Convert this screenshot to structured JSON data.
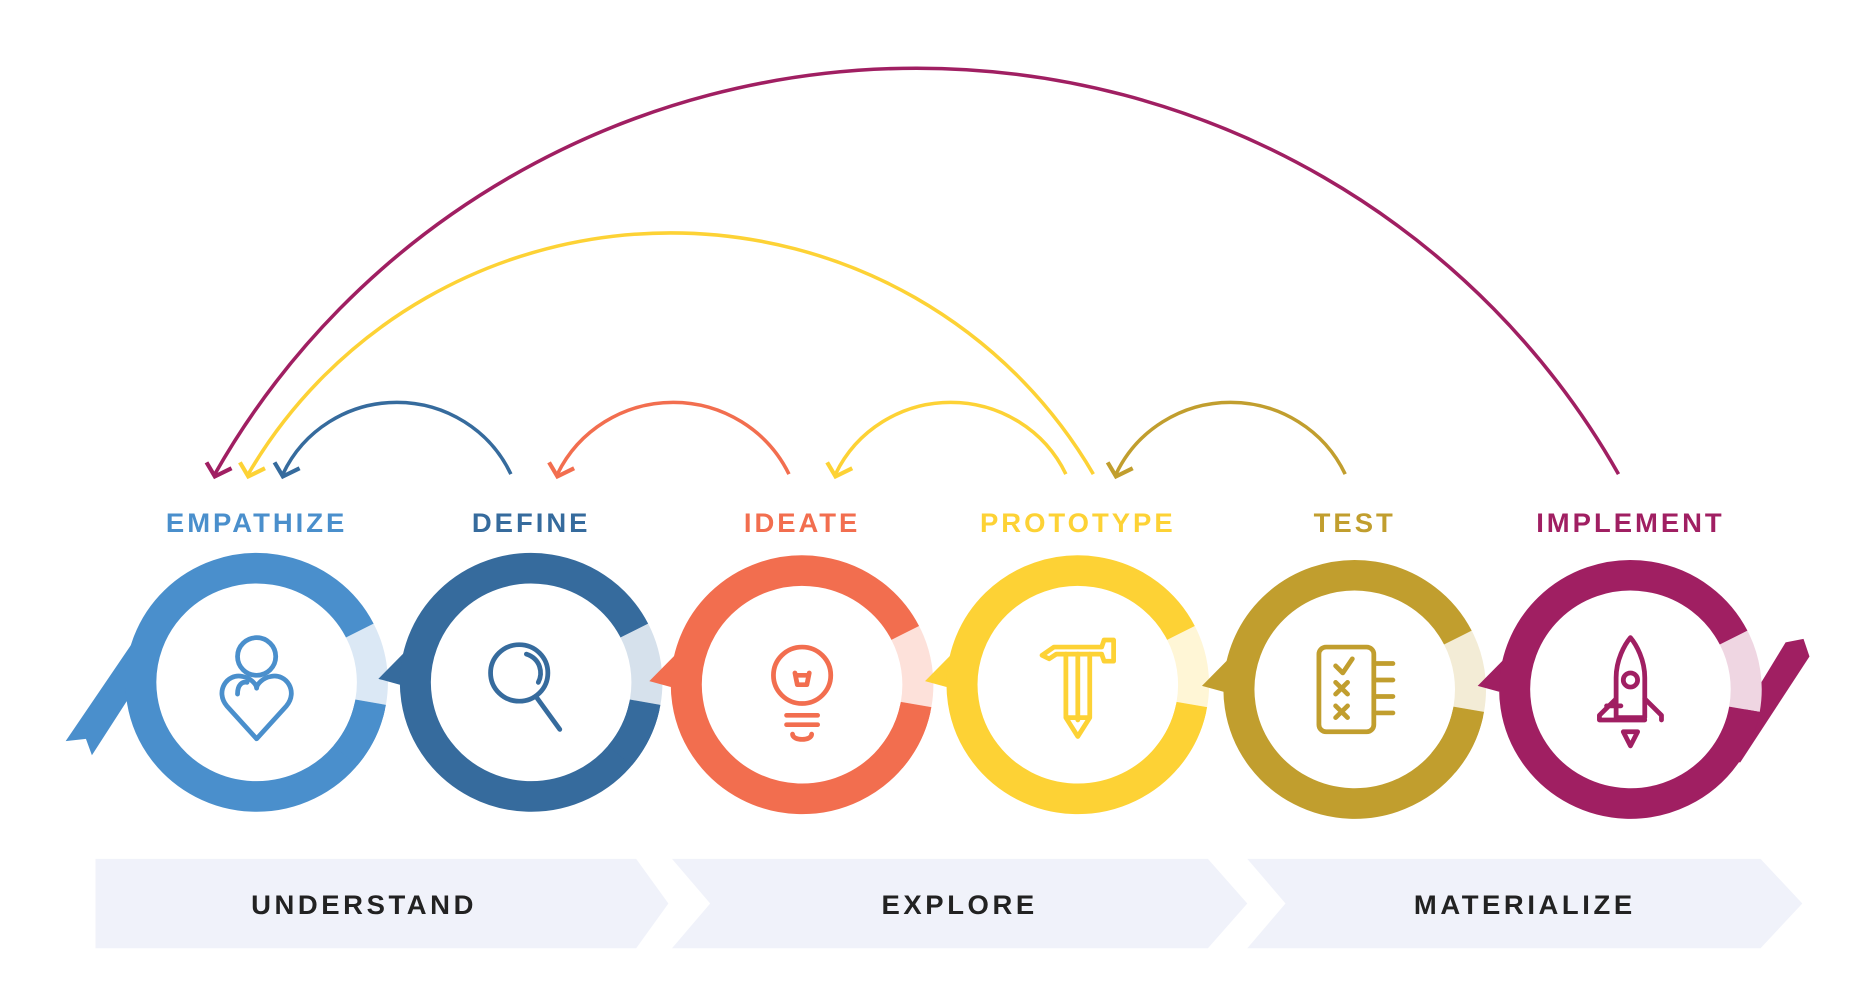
{
  "stages": [
    {
      "label": "EMPATHIZE",
      "icon": "person-heart-icon",
      "color": "#4a8fcc",
      "light": "#dbe8f5"
    },
    {
      "label": "DEFINE",
      "icon": "magnifier-icon",
      "color": "#366b9d",
      "light": "#d6e1ec"
    },
    {
      "label": "IDEATE",
      "icon": "lightbulb-icon",
      "color": "#f26e4f",
      "light": "#fde1da"
    },
    {
      "label": "PROTOTYPE",
      "icon": "hammer-pencil-icon",
      "color": "#fdd235",
      "light": "#fff6d6"
    },
    {
      "label": "TEST",
      "icon": "checklist-icon",
      "color": "#c19e2e",
      "light": "#f3ecd6"
    },
    {
      "label": "IMPLEMENT",
      "icon": "rocket-icon",
      "color": "#a01f62",
      "light": "#efd6e2"
    }
  ],
  "phases": [
    {
      "label": "UNDERSTAND"
    },
    {
      "label": "EXPLORE"
    },
    {
      "label": "MATERIALIZE"
    }
  ],
  "phase_color": "#f0f2fa"
}
